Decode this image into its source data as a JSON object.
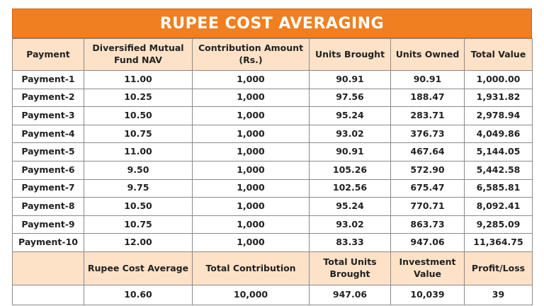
{
  "title": "RUPEE COST AVERAGING",
  "table": {
    "columns": [
      "Payment",
      "Diversified Mutual Fund NAV",
      "Contribution Amount (Rs.)",
      "Units Brought",
      "Units Owned",
      "Total Value"
    ],
    "rows": [
      [
        "Payment-1",
        "11.00",
        "1,000",
        "90.91",
        "90.91",
        "1,000.00"
      ],
      [
        "Payment-2",
        "10.25",
        "1,000",
        "97.56",
        "188.47",
        "1,931.82"
      ],
      [
        "Payment-3",
        "10.50",
        "1,000",
        "95.24",
        "283.71",
        "2,978.94"
      ],
      [
        "Payment-4",
        "10.75",
        "1,000",
        "93.02",
        "376.73",
        "4,049.86"
      ],
      [
        "Payment-5",
        "11.00",
        "1,000",
        "90.91",
        "467.64",
        "5,144.05"
      ],
      [
        "Payment-6",
        "9.50",
        "1,000",
        "105.26",
        "572.90",
        "5,442.58"
      ],
      [
        "Payment-7",
        "9.75",
        "1,000",
        "102.56",
        "675.47",
        "6,585.81"
      ],
      [
        "Payment-8",
        "10.50",
        "1,000",
        "95.24",
        "770.71",
        "8,092.41"
      ],
      [
        "Payment-9",
        "10.75",
        "1,000",
        "93.02",
        "863.73",
        "9,285.09"
      ],
      [
        "Payment-10",
        "12.00",
        "1,000",
        "83.33",
        "947.06",
        "11,364.75"
      ]
    ]
  },
  "summary": {
    "headers": [
      "Rupee Cost Average",
      "Total Contribution",
      "Total Units Brought",
      "Investment Value",
      "Profit/Loss"
    ],
    "values": [
      "10.60",
      "10,000",
      "947.06",
      "10,039",
      "39"
    ]
  }
}
